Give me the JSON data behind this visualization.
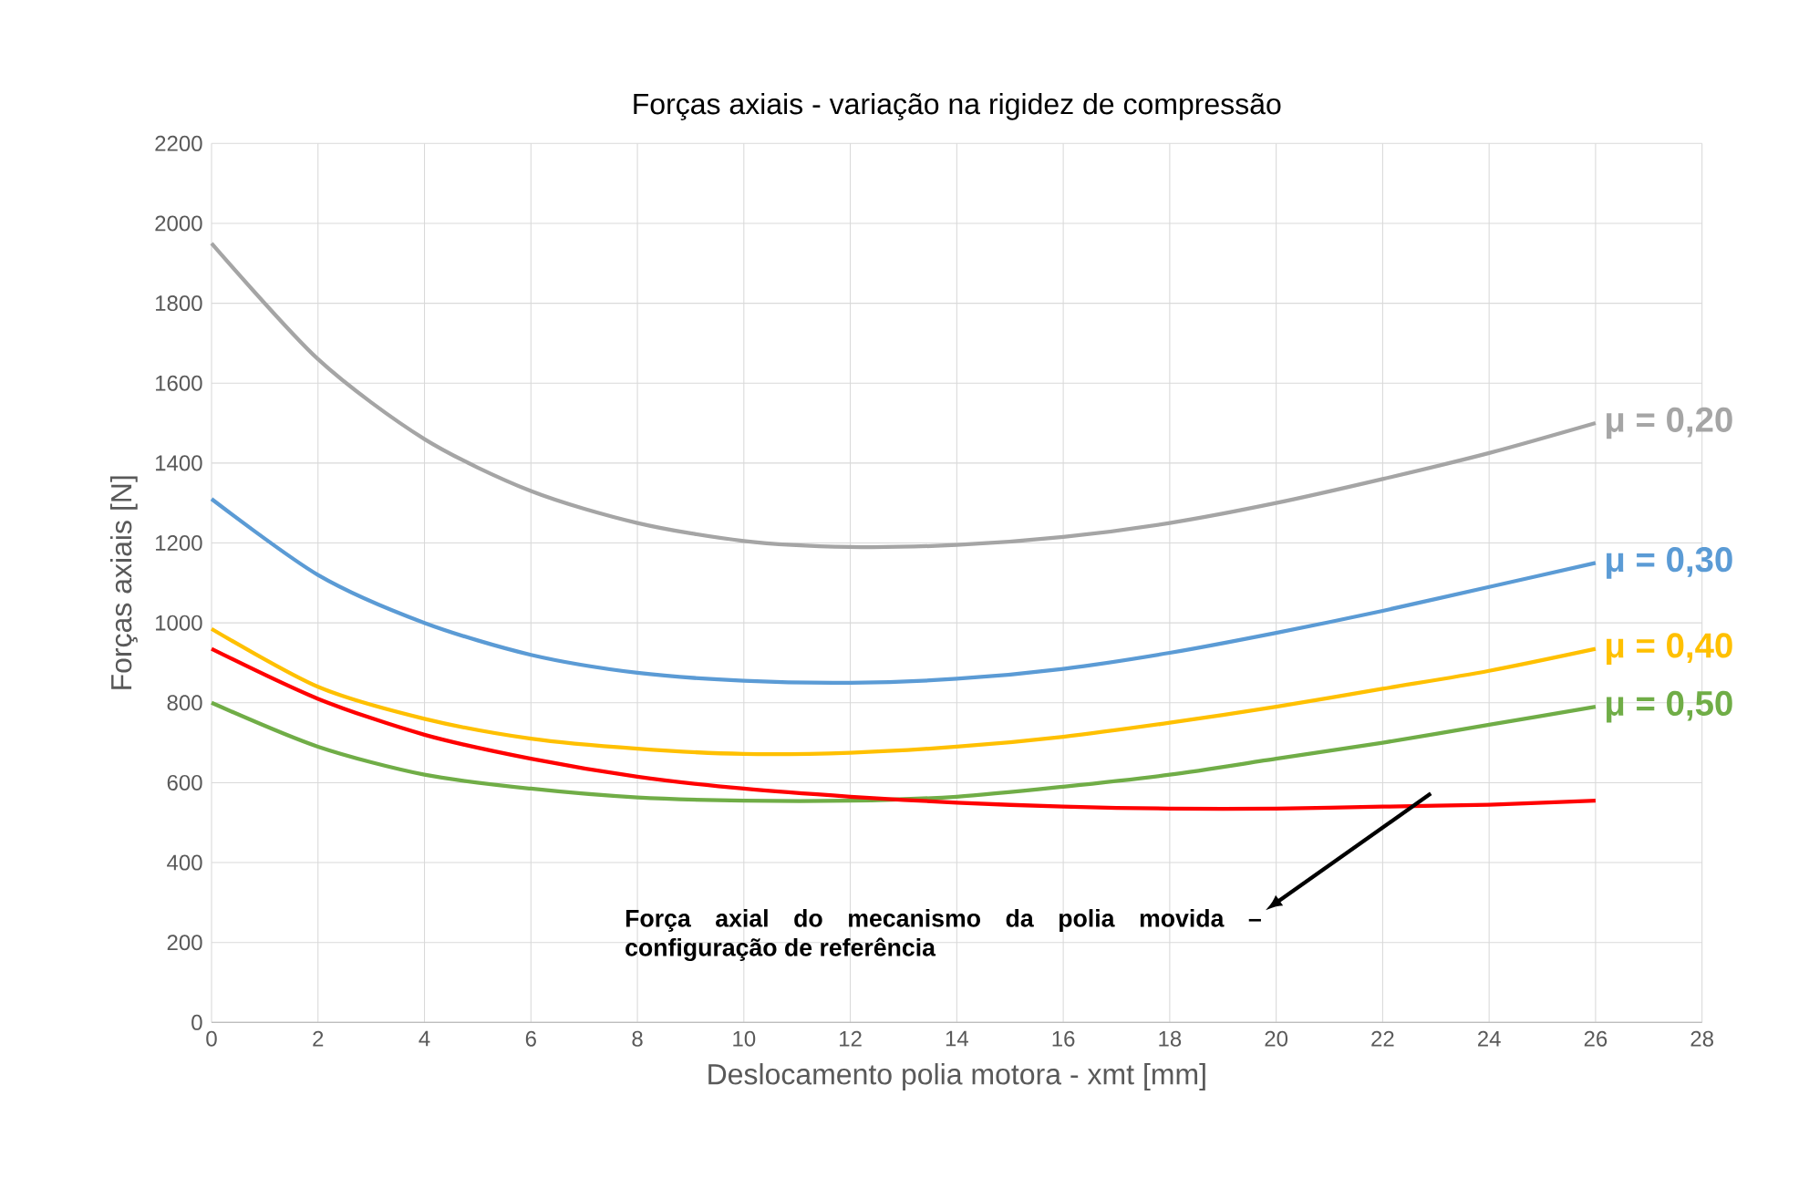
{
  "chart_data": {
    "type": "line",
    "title": "Forças axiais - variação na rigidez de compressão",
    "xlabel": "Deslocamento polia motora - xmt [mm]",
    "ylabel": "Forças axiais [N]",
    "x": [
      0,
      2,
      4,
      6,
      8,
      10,
      12,
      14,
      16,
      18,
      20,
      22,
      24,
      26
    ],
    "xlim": [
      0,
      28
    ],
    "xticks": [
      0,
      2,
      4,
      6,
      8,
      10,
      12,
      14,
      16,
      18,
      20,
      22,
      24,
      26,
      28
    ],
    "ylim": [
      0,
      2200
    ],
    "yticks": [
      0,
      200,
      400,
      600,
      800,
      1000,
      1200,
      1400,
      1600,
      1800,
      2000,
      2200
    ],
    "grid": true,
    "legend": false,
    "marker": "none",
    "line_style": "solid",
    "series": [
      {
        "name": "μ = 0,20",
        "color": "#a5a5a5",
        "values": [
          1950,
          1660,
          1460,
          1330,
          1250,
          1205,
          1190,
          1195,
          1215,
          1250,
          1300,
          1360,
          1425,
          1500
        ]
      },
      {
        "name": "μ = 0,30",
        "color": "#5b9bd5",
        "values": [
          1310,
          1120,
          1000,
          920,
          875,
          855,
          850,
          860,
          885,
          925,
          975,
          1030,
          1090,
          1150
        ]
      },
      {
        "name": "μ = 0,40",
        "color": "#ffc000",
        "values": [
          985,
          840,
          760,
          710,
          685,
          672,
          675,
          690,
          715,
          750,
          790,
          835,
          880,
          935
        ]
      },
      {
        "name": "μ = 0,50",
        "color": "#70ad47",
        "values": [
          800,
          690,
          620,
          585,
          563,
          555,
          555,
          565,
          590,
          620,
          660,
          700,
          745,
          790
        ]
      },
      {
        "color": "#ff0000",
        "values": [
          935,
          810,
          720,
          660,
          615,
          585,
          565,
          550,
          540,
          535,
          535,
          540,
          545,
          555
        ]
      }
    ],
    "annotations": [
      "Força axial do mecanismo da polia movida – configuração de referência"
    ]
  }
}
